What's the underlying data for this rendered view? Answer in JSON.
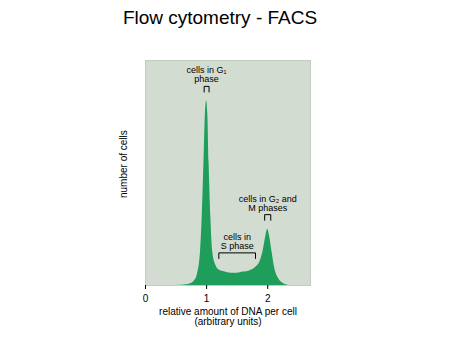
{
  "chart_data": {
    "type": "area",
    "title": "Flow cytometry - FACS",
    "x_label": "relative amount of DNA per cell\n(arbitrary units)",
    "y_label": "number of cells",
    "x": [
      0.5,
      0.7,
      0.8,
      0.85,
      0.9,
      0.93,
      0.96,
      0.98,
      1.0,
      1.02,
      1.04,
      1.07,
      1.1,
      1.15,
      1.2,
      1.3,
      1.4,
      1.5,
      1.6,
      1.7,
      1.8,
      1.88,
      1.93,
      1.97,
      2.0,
      2.03,
      2.07,
      2.12,
      2.18,
      2.25,
      2.35
    ],
    "values": [
      0,
      0.5,
      2,
      5,
      15,
      32,
      58,
      76,
      82,
      76,
      55,
      30,
      15,
      9,
      7,
      6,
      5.5,
      5.5,
      6,
      6.5,
      8,
      11,
      16,
      22,
      25,
      22,
      15,
      7,
      3,
      1,
      0
    ],
    "color": "#1e9e5a",
    "xlim": [
      0,
      2.7
    ],
    "xticks": [
      0,
      1,
      2
    ],
    "ylim": [
      0,
      100
    ],
    "tick_labels": "x",
    "grid": false,
    "annotations": [
      {
        "text": "cells in G₁\nphase",
        "x": [
          0.96,
          1.04
        ]
      },
      {
        "text": "cells in\nS phase",
        "x": [
          1.2,
          1.8
        ]
      },
      {
        "text": "cells in G₂ and\nM phases",
        "x": [
          1.95,
          2.05
        ]
      }
    ]
  }
}
